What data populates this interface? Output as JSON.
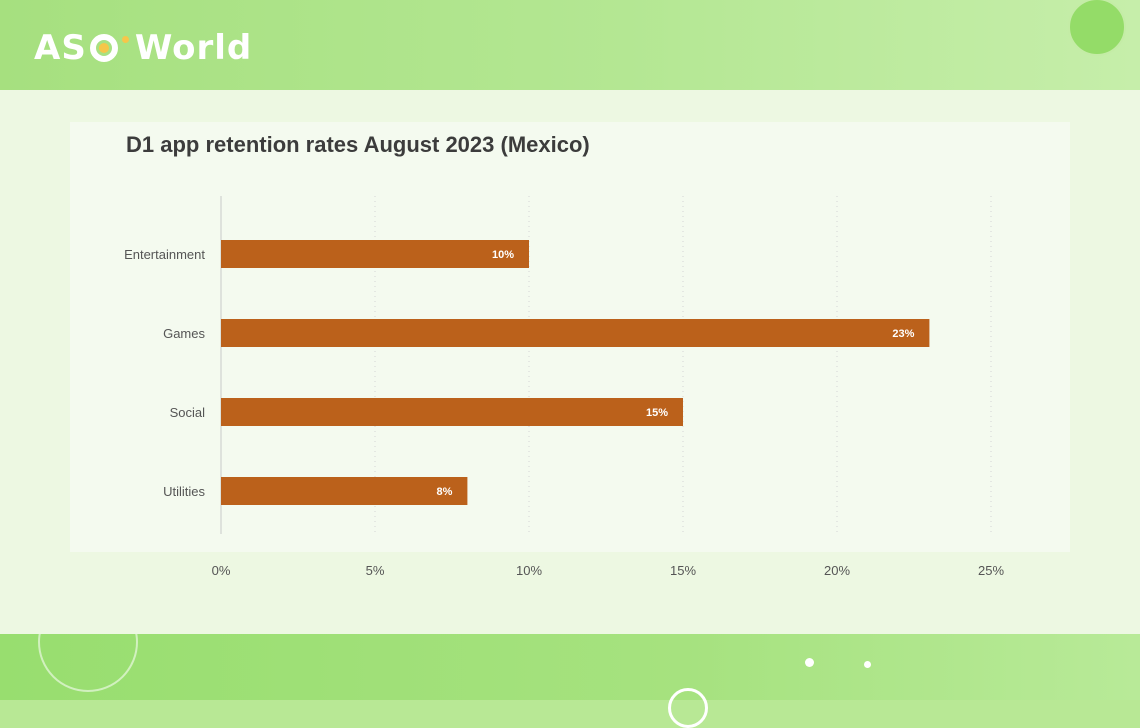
{
  "brand": {
    "name_part1": "AS",
    "name_part2": "World",
    "logo_color": "#ffffff",
    "logo_accent": "#f6c64a"
  },
  "colors": {
    "bar": "#bb611b",
    "bar_label": "#ffffff",
    "axis_text": "#555555",
    "title_text": "#3c3c3c",
    "grid": "#d4d4d4"
  },
  "chart_data": {
    "type": "bar",
    "orientation": "horizontal",
    "title": "D1 app retention rates August 2023 (Mexico)",
    "categories": [
      "Entertainment",
      "Games",
      "Social",
      "Utilities"
    ],
    "values": [
      10,
      23,
      15,
      8
    ],
    "data_labels": [
      "10%",
      "23%",
      "15%",
      "8%"
    ],
    "xlim": [
      0,
      25
    ],
    "xticks": [
      0,
      5,
      10,
      15,
      20,
      25
    ],
    "xtick_labels": [
      "0%",
      "5%",
      "10%",
      "15%",
      "20%",
      "25%"
    ],
    "xlabel": "",
    "ylabel": "",
    "grid": true
  }
}
